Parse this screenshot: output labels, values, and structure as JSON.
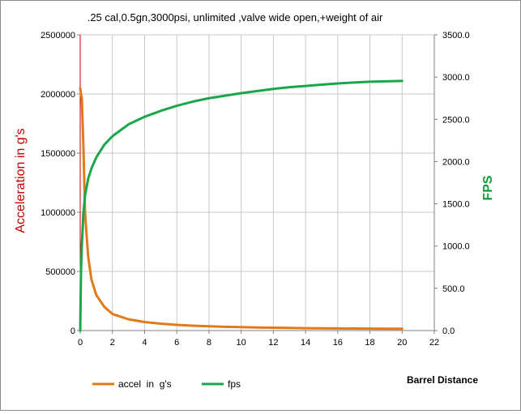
{
  "chart_data": {
    "type": "line",
    "title": ".25 cal,0.5gn,3000psi, unlimited ,valve wide open,+weight of air",
    "xlabel": "Barrel Distance",
    "ylabel": "Acceleration in g's",
    "y2label": "FPS",
    "xlim": [
      0,
      22
    ],
    "ylim": [
      0,
      2500000
    ],
    "y2lim": [
      0,
      3500
    ],
    "x_ticks": [
      "0",
      "2",
      "4",
      "6",
      "8",
      "10",
      "12",
      "14",
      "16",
      "18",
      "20",
      "22"
    ],
    "y_ticks": [
      "0",
      "500000",
      "1000000",
      "1500000",
      "2000000",
      "2500000"
    ],
    "y2_ticks": [
      "0.0",
      "500.0",
      "1000.0",
      "1500.0",
      "2000.0",
      "2500.0",
      "3000.0",
      "3500.0"
    ],
    "grid": true,
    "legend_position": "bottom-left",
    "series": [
      {
        "name": "accel  in  g's",
        "axis": "left",
        "color": "#e07b1a",
        "x": [
          0,
          0.05,
          0.1,
          0.2,
          0.3,
          0.4,
          0.5,
          0.7,
          1,
          1.5,
          2,
          3,
          4,
          5,
          6,
          7,
          8,
          9,
          10,
          11,
          12,
          13,
          14,
          15,
          16,
          17,
          18,
          19,
          20
        ],
        "y": [
          2050000,
          2000000,
          1960000,
          1550000,
          1000000,
          800000,
          620000,
          430000,
          300000,
          200000,
          140000,
          95000,
          72000,
          58000,
          48000,
          41000,
          36000,
          32000,
          29000,
          26000,
          24000,
          22000,
          20000,
          19000,
          18000,
          17000,
          16000,
          15500,
          15000
        ]
      },
      {
        "name": "fps",
        "axis": "right",
        "color": "#1aa64a",
        "x": [
          0,
          0.05,
          0.1,
          0.2,
          0.3,
          0.5,
          0.7,
          1,
          1.5,
          2,
          3,
          4,
          5,
          6,
          7,
          8,
          9,
          10,
          11,
          12,
          13,
          14,
          15,
          16,
          17,
          18,
          19,
          20
        ],
        "y": [
          0,
          700,
          1000,
          1400,
          1600,
          1800,
          1920,
          2050,
          2200,
          2300,
          2440,
          2530,
          2600,
          2660,
          2710,
          2750,
          2780,
          2810,
          2835,
          2860,
          2880,
          2895,
          2910,
          2925,
          2935,
          2945,
          2950,
          2955
        ]
      }
    ]
  }
}
